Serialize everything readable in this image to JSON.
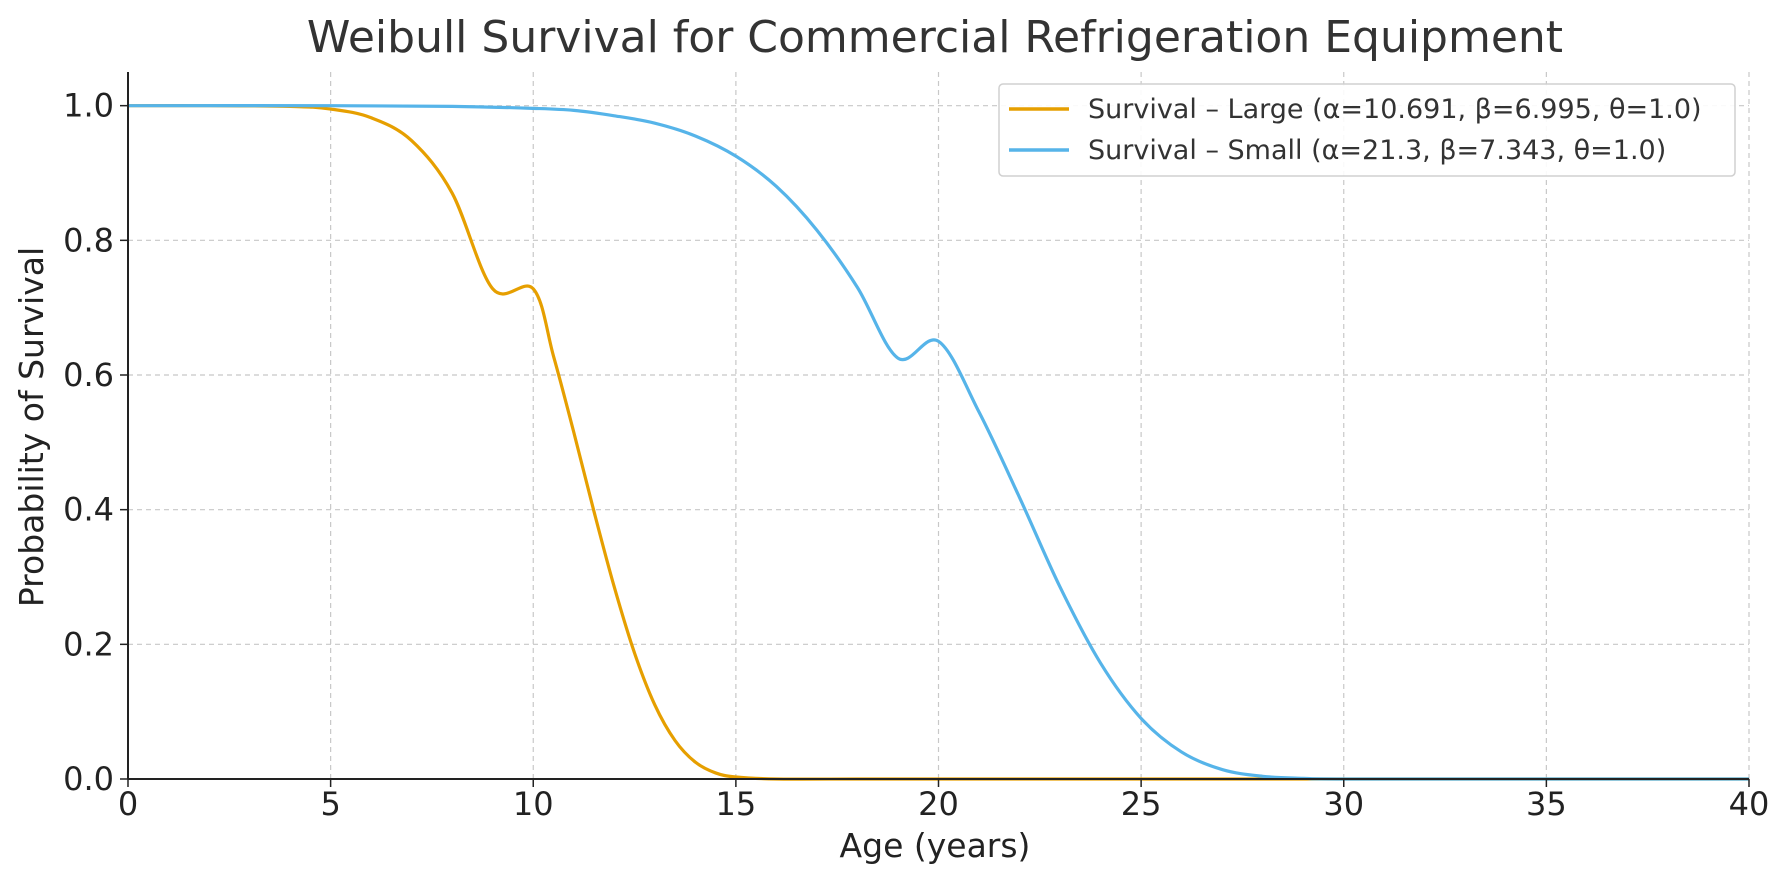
{
  "chart_data": {
    "type": "line",
    "title": "Weibull Survival for Commercial Refrigeration Equipment",
    "xlabel": "Age (years)",
    "ylabel": "Probability of Survival",
    "xlim": [
      0,
      40
    ],
    "ylim": [
      0,
      1.05
    ],
    "xticks": [
      0,
      5,
      10,
      15,
      20,
      25,
      30,
      35,
      40
    ],
    "xtick_labels": [
      "0",
      "5",
      "10",
      "15",
      "20",
      "25",
      "30",
      "35",
      "40"
    ],
    "yticks": [
      0,
      0.2,
      0.4,
      0.6,
      0.8,
      1.0
    ],
    "ytick_labels": [
      "0.0",
      "0.2",
      "0.4",
      "0.6",
      "0.8",
      "1.0"
    ],
    "grid": true,
    "grid_style": "dashed",
    "legend_position": "top-right",
    "series": [
      {
        "name": "Survival – Large (α=10.691, β=6.995, θ=1.0)",
        "color": "#E69F00",
        "x": [
          0,
          2,
          4,
          5,
          6,
          7,
          8,
          9,
          10,
          10.5,
          11,
          11.5,
          12,
          12.5,
          13,
          13.5,
          14,
          14.5,
          15,
          16,
          18,
          20,
          25,
          30,
          35,
          40
        ],
        "y": [
          1.0,
          1.0,
          0.999,
          0.995,
          0.982,
          0.948,
          0.87,
          0.728,
          0.728,
          0.628,
          0.515,
          0.397,
          0.285,
          0.187,
          0.11,
          0.057,
          0.025,
          0.009,
          0.003,
          0.0,
          0.0,
          0.0,
          0.0,
          0.0,
          0.0,
          0.0
        ]
      },
      {
        "name": "Survival – Small (α=21.3, β=7.343, θ=1.0)",
        "color": "#56B4E9",
        "x": [
          0,
          5,
          8,
          10,
          11,
          12,
          13,
          14,
          15,
          16,
          17,
          18,
          19,
          20,
          21,
          22,
          23,
          24,
          25,
          26,
          27,
          28,
          29,
          30,
          35,
          40
        ],
        "y": [
          1.0,
          1.0,
          0.999,
          0.996,
          0.993,
          0.985,
          0.974,
          0.955,
          0.925,
          0.88,
          0.815,
          0.73,
          0.625,
          0.65,
          0.545,
          0.418,
          0.285,
          0.172,
          0.09,
          0.04,
          0.014,
          0.004,
          0.001,
          0.0,
          0.0,
          0.0
        ]
      }
    ]
  }
}
